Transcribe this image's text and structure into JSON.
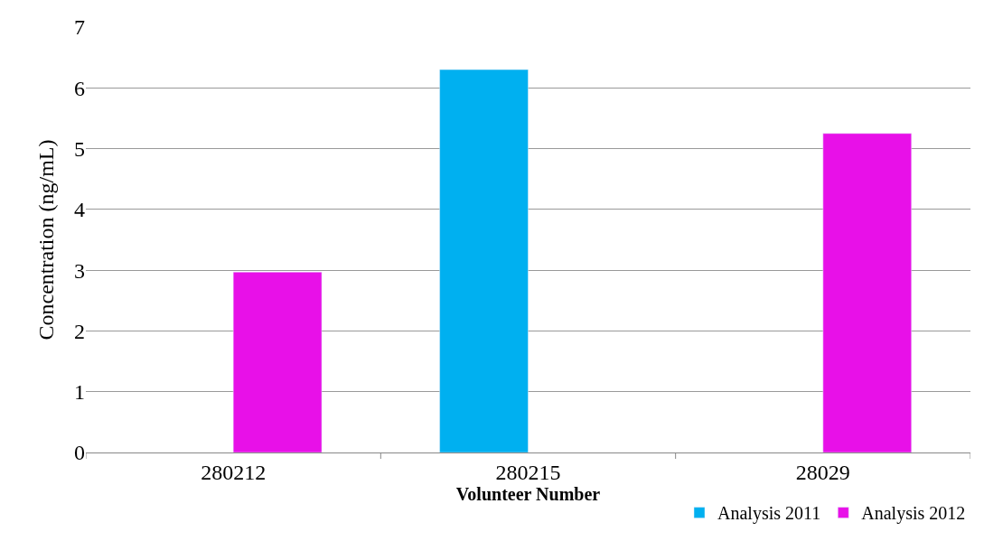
{
  "chart_data": {
    "type": "bar",
    "xlabel": "Volunteer Number",
    "ylabel": "Concentration (ng/mL)",
    "categories": [
      "280212",
      "280215",
      "28029"
    ],
    "series": [
      {
        "name": "Analysis 2011",
        "color": "#00b0f0",
        "values": [
          null,
          6.3,
          null
        ]
      },
      {
        "name": "Analysis 2012",
        "color": "#e810e8",
        "values": [
          2.97,
          null,
          5.25
        ]
      }
    ],
    "ylim": [
      0,
      7
    ],
    "yticks": [
      0,
      1,
      2,
      3,
      4,
      5,
      6,
      7
    ],
    "grid": "y",
    "legend": "bottom right"
  }
}
